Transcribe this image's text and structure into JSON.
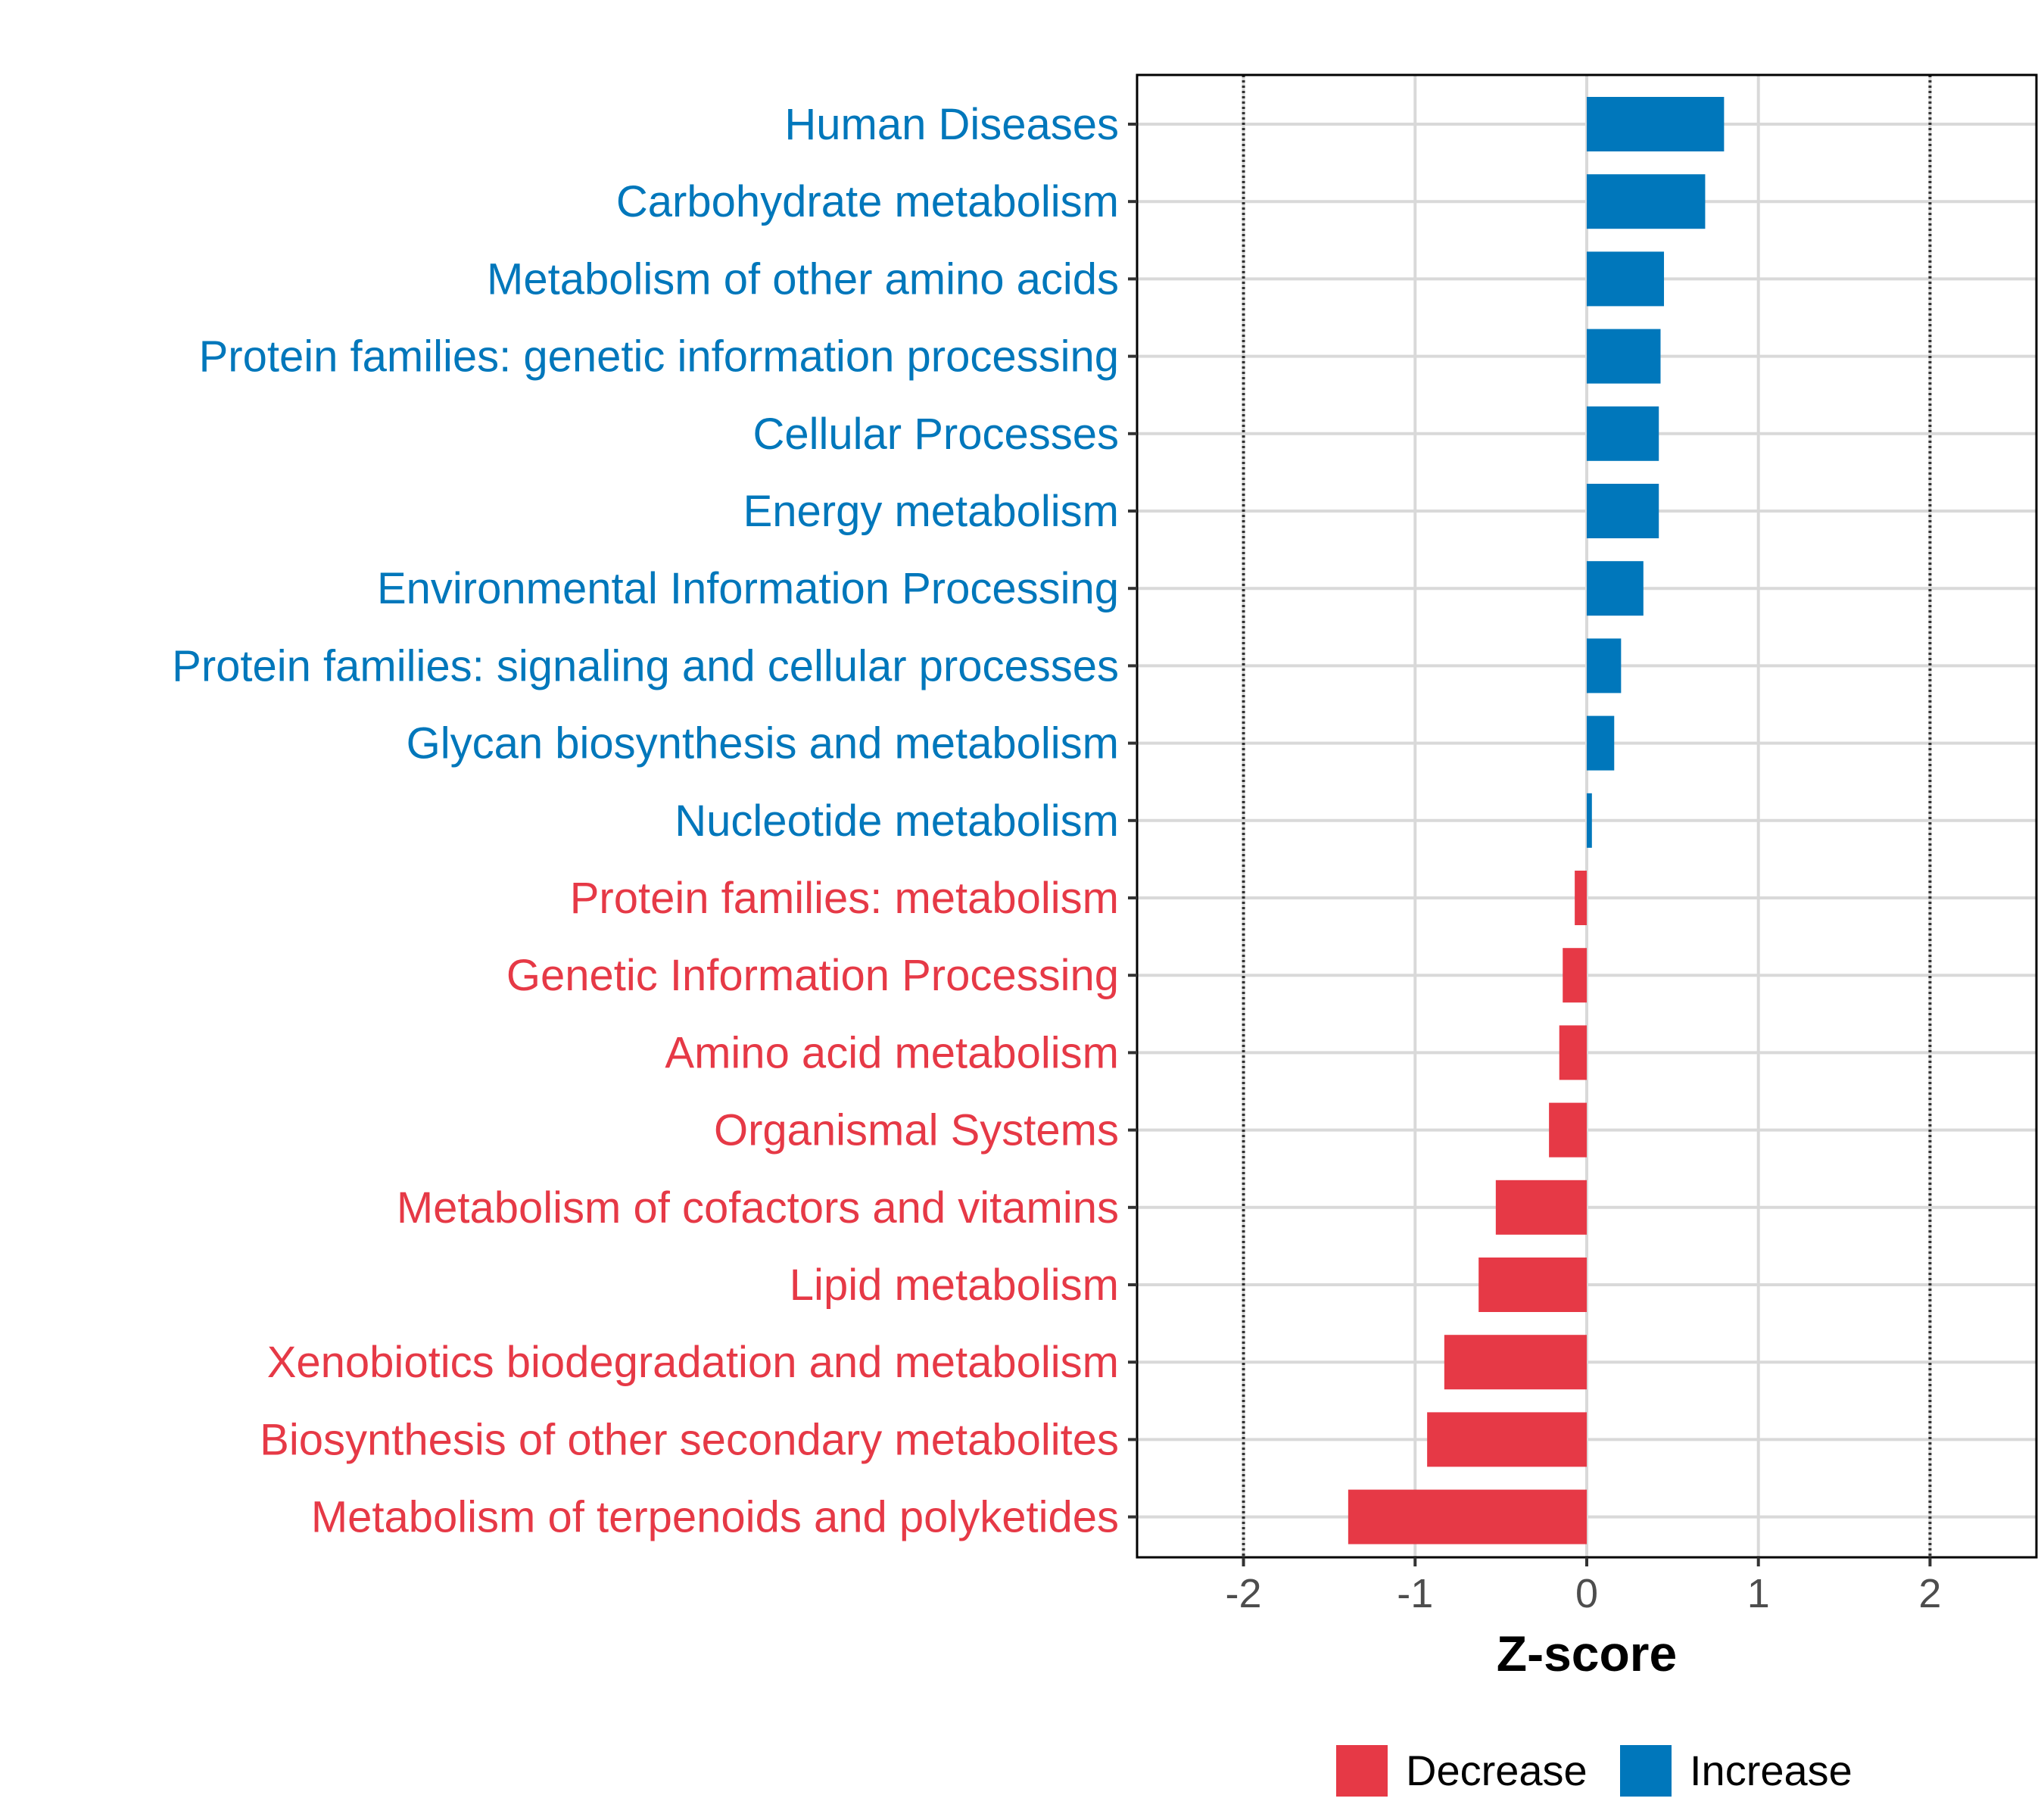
{
  "chart_data": {
    "type": "bar",
    "orientation": "horizontal",
    "xlabel": "Z-score",
    "xlim": [
      -2.62,
      2.62
    ],
    "x_ticks": [
      -2,
      -1,
      0,
      1,
      2
    ],
    "x_tick_labels": [
      "-2",
      "-1",
      "0",
      "1",
      "2"
    ],
    "reference_lines": [
      -2,
      2
    ],
    "grid": true,
    "legend_position": "bottom",
    "categories": [
      "Human Diseases",
      "Carbohydrate metabolism",
      "Metabolism of other amino acids",
      "Protein families: genetic information processing",
      "Cellular Processes",
      "Energy metabolism",
      "Environmental Information Processing",
      "Protein families: signaling and cellular processes",
      "Glycan biosynthesis and metabolism",
      "Nucleotide metabolism",
      "Protein families: metabolism",
      "Genetic Information Processing",
      "Amino acid metabolism",
      "Organismal Systems",
      "Metabolism of cofactors and vitamins",
      "Lipid metabolism",
      "Xenobiotics biodegradation and metabolism",
      "Biosynthesis of other secondary metabolites",
      "Metabolism of terpenoids and polyketides"
    ],
    "values": [
      0.8,
      0.69,
      0.45,
      0.43,
      0.42,
      0.42,
      0.33,
      0.2,
      0.16,
      0.03,
      -0.07,
      -0.14,
      -0.16,
      -0.22,
      -0.53,
      -0.63,
      -0.83,
      -0.93,
      -1.39
    ],
    "groups": [
      "Increase",
      "Increase",
      "Increase",
      "Increase",
      "Increase",
      "Increase",
      "Increase",
      "Increase",
      "Increase",
      "Increase",
      "Decrease",
      "Decrease",
      "Decrease",
      "Decrease",
      "Decrease",
      "Decrease",
      "Decrease",
      "Decrease",
      "Decrease"
    ],
    "legend": [
      {
        "name": "Decrease",
        "color": "#e63946"
      },
      {
        "name": "Increase",
        "color": "#0077bb"
      }
    ]
  }
}
